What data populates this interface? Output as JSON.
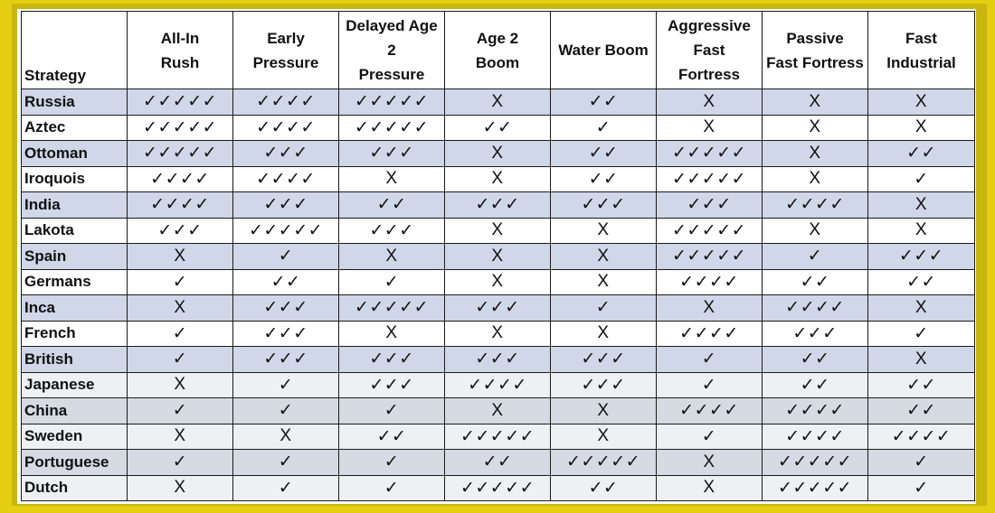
{
  "table": {
    "header": {
      "strategy": "Strategy",
      "columns": [
        [
          "All-In",
          "Rush"
        ],
        [
          "Early",
          "Pressure"
        ],
        [
          "Delayed Age",
          "2",
          "Pressure"
        ],
        [
          "Age 2",
          "Boom"
        ],
        [
          "Water Boom"
        ],
        [
          "Aggressive",
          "Fast",
          "Fortress"
        ],
        [
          "Passive",
          "Fast Fortress"
        ],
        [
          "Fast",
          "Industrial"
        ]
      ]
    },
    "rows": [
      {
        "civ": "Russia",
        "cells": [
          "✓✓✓✓✓",
          "✓✓✓✓",
          "✓✓✓✓✓",
          "X",
          "✓✓",
          "X",
          "X",
          "X"
        ]
      },
      {
        "civ": "Aztec",
        "cells": [
          "✓✓✓✓✓",
          "✓✓✓✓",
          "✓✓✓✓✓",
          "✓✓",
          "✓",
          "X",
          "X",
          "X"
        ]
      },
      {
        "civ": "Ottoman",
        "cells": [
          "✓✓✓✓✓",
          "✓✓✓",
          "✓✓✓",
          "X",
          "✓✓",
          "✓✓✓✓✓",
          "X",
          "✓✓"
        ]
      },
      {
        "civ": "Iroquois",
        "cells": [
          "✓✓✓✓",
          "✓✓✓✓",
          "X",
          "X",
          "✓✓",
          "✓✓✓✓✓",
          "X",
          "✓"
        ]
      },
      {
        "civ": "India",
        "cells": [
          "✓✓✓✓",
          "✓✓✓",
          "✓✓",
          "✓✓✓",
          "✓✓✓",
          "✓✓✓",
          "✓✓✓✓",
          "X"
        ]
      },
      {
        "civ": "Lakota",
        "cells": [
          "✓✓✓",
          "✓✓✓✓✓",
          "✓✓✓",
          "X",
          "X",
          "✓✓✓✓✓",
          "X",
          "X"
        ]
      },
      {
        "civ": "Spain",
        "cells": [
          "X",
          "✓",
          "X",
          "X",
          "X",
          "✓✓✓✓✓",
          "✓",
          "✓✓✓"
        ]
      },
      {
        "civ": "Germans",
        "cells": [
          "✓",
          "✓✓",
          "✓",
          "X",
          "X",
          "✓✓✓✓",
          "✓✓",
          "✓✓"
        ]
      },
      {
        "civ": "Inca",
        "cells": [
          "X",
          "✓✓✓",
          "✓✓✓✓✓",
          "✓✓✓",
          "✓",
          "X",
          "✓✓✓✓",
          "X"
        ]
      },
      {
        "civ": "French",
        "cells": [
          "✓",
          "✓✓✓",
          "X",
          "X",
          "X",
          "✓✓✓✓",
          "✓✓✓",
          "✓"
        ]
      },
      {
        "civ": "British",
        "cells": [
          "✓",
          "✓✓✓",
          "✓✓✓",
          "✓✓✓",
          "✓✓✓",
          "✓",
          "✓✓",
          "X"
        ]
      },
      {
        "civ": "Japanese",
        "cells": [
          "X",
          "✓",
          "✓✓✓",
          "✓✓✓✓",
          "✓✓✓",
          "✓",
          "✓✓",
          "✓✓"
        ]
      },
      {
        "civ": "China",
        "cells": [
          "✓",
          "✓",
          "✓",
          "X",
          "X",
          "✓✓✓✓",
          "✓✓✓✓",
          "✓✓"
        ]
      },
      {
        "civ": "Sweden",
        "cells": [
          "X",
          "X",
          "✓✓",
          "✓✓✓✓✓",
          "X",
          "✓",
          "✓✓✓✓",
          "✓✓✓✓"
        ]
      },
      {
        "civ": "Portuguese",
        "cells": [
          "✓",
          "✓",
          "✓",
          "✓✓",
          "✓✓✓✓✓",
          "X",
          "✓✓✓✓✓",
          "✓"
        ]
      },
      {
        "civ": "Dutch",
        "cells": [
          "X",
          "✓",
          "✓",
          "✓✓✓✓✓",
          "✓✓",
          "X",
          "✓✓✓✓✓",
          "✓"
        ]
      }
    ]
  },
  "colors": {
    "frame": "#e6cf12",
    "band_row": "#cfd7e8",
    "plain_row": "#ffffff",
    "border": "#1a1a1a"
  }
}
